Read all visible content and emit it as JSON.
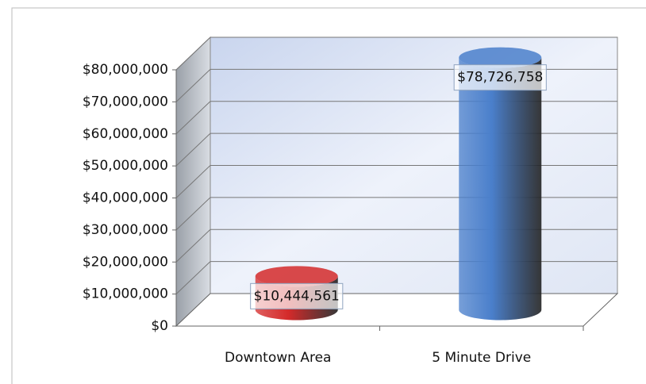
{
  "chart_data": {
    "type": "bar3d_cylinder",
    "categories": [
      "Downtown Area",
      "5 Minute Drive"
    ],
    "values": [
      10444561,
      78726758
    ],
    "value_labels": [
      "$10,444,561",
      "$78,726,758"
    ],
    "colors": [
      "#d42a2a",
      "#4a7fcb"
    ],
    "ylim": [
      0,
      80000000
    ],
    "yticks": [
      {
        "value": 0,
        "label": "$0"
      },
      {
        "value": 10000000,
        "label": "$10,000,000"
      },
      {
        "value": 20000000,
        "label": "$20,000,000"
      },
      {
        "value": 30000000,
        "label": "$30,000,000"
      },
      {
        "value": 40000000,
        "label": "$40,000,000"
      },
      {
        "value": 50000000,
        "label": "$50,000,000"
      },
      {
        "value": 60000000,
        "label": "$60,000,000"
      },
      {
        "value": 70000000,
        "label": "$70,000,000"
      },
      {
        "value": 80000000,
        "label": "$80,000,000"
      }
    ],
    "grid": true
  }
}
